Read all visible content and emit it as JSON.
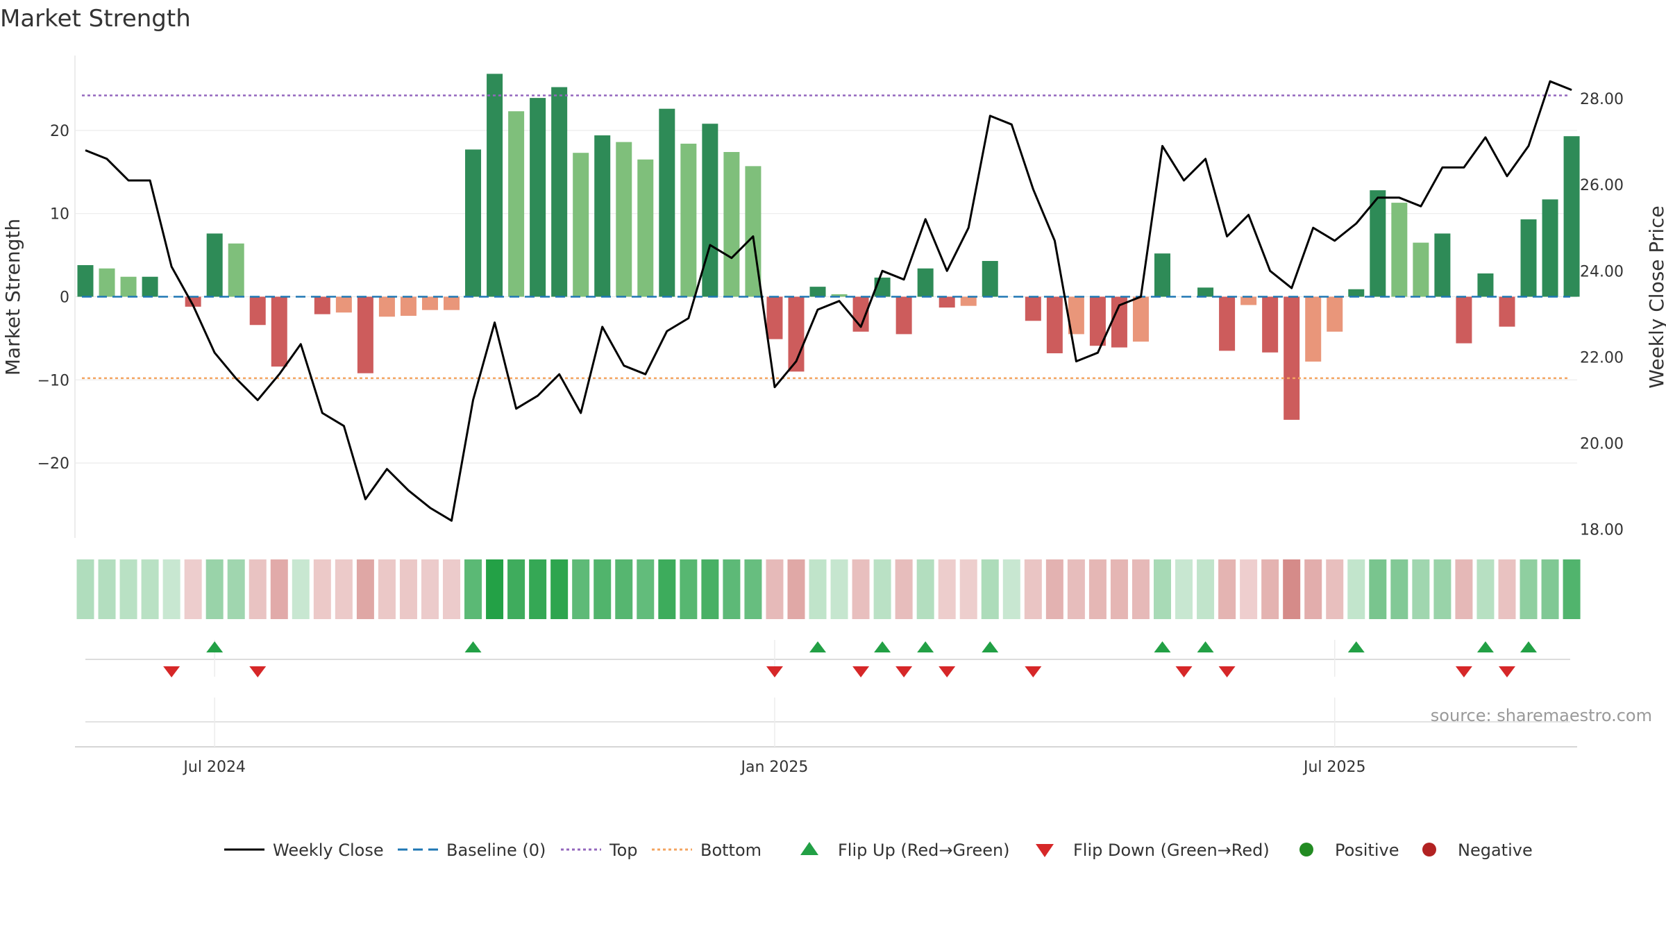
{
  "chart_data": {
    "type": "bar",
    "title": "Market Strength",
    "ylabel": "Market Strength",
    "y2label": "Weekly Close Price",
    "ylim": [
      -29,
      29
    ],
    "y2lim": [
      17.8,
      29.0
    ],
    "yticks": [
      -20,
      -10,
      0,
      10,
      20
    ],
    "yticklabels": [
      "−20",
      "−10",
      "0",
      "10",
      "20"
    ],
    "y2ticks": [
      18,
      20,
      22,
      24,
      26,
      28
    ],
    "y2ticklabels": [
      "18.00",
      "20.00",
      "22.00",
      "24.00",
      "26.00",
      "28.00"
    ],
    "xticks": [
      {
        "index": 6,
        "label": "Jul 2024"
      },
      {
        "index": 32,
        "label": "Jan 2025"
      },
      {
        "index": 58,
        "label": "Jul 2025"
      }
    ],
    "top_level": 24.2,
    "bottom_level": -9.8,
    "baseline": 0,
    "strength": [
      3.8,
      3.4,
      2.4,
      2.4,
      0,
      -1.2,
      7.6,
      6.4,
      -3.4,
      -8.4,
      0,
      -2.1,
      -1.9,
      -9.2,
      -2.4,
      -2.3,
      -1.6,
      -1.6,
      17.7,
      26.8,
      22.3,
      23.9,
      25.2,
      17.3,
      19.4,
      18.6,
      16.5,
      22.6,
      18.4,
      20.8,
      17.4,
      15.7,
      -5.1,
      -9.0,
      1.2,
      0.3,
      -4.2,
      2.3,
      -4.5,
      3.4,
      -1.3,
      -1.1,
      4.3,
      0,
      -2.9,
      -6.8,
      -4.5,
      -5.9,
      -6.1,
      -5.4,
      5.2,
      0,
      1.1,
      -6.5,
      -1.0,
      -6.7,
      -14.8,
      -7.8,
      -4.2,
      0.9,
      12.8,
      11.3,
      6.5,
      7.6,
      -5.6,
      2.8,
      -3.6,
      9.3,
      11.7,
      19.3
    ],
    "strength_shade": [
      "dark",
      "light",
      "light",
      "dark",
      "dark",
      "dark",
      "dark",
      "light",
      "dark",
      "dark",
      "dark",
      "dark",
      "light",
      "dark",
      "light",
      "light",
      "light",
      "light",
      "dark",
      "dark",
      "light",
      "dark",
      "dark",
      "light",
      "dark",
      "light",
      "light",
      "dark",
      "light",
      "dark",
      "light",
      "light",
      "dark",
      "dark",
      "dark",
      "light",
      "dark",
      "dark",
      "dark",
      "dark",
      "dark",
      "light",
      "dark",
      "dark",
      "dark",
      "dark",
      "light",
      "dark",
      "dark",
      "light",
      "dark",
      "dark",
      "dark",
      "dark",
      "light",
      "dark",
      "dark",
      "light",
      "light",
      "dark",
      "dark",
      "light",
      "light",
      "dark",
      "dark",
      "dark",
      "dark",
      "dark",
      "dark",
      "dark"
    ],
    "series": [
      {
        "name": "Weekly Close",
        "values": [
          26.8,
          26.6,
          26.1,
          26.1,
          24.1,
          23.2,
          22.1,
          21.5,
          21.0,
          21.6,
          22.3,
          20.7,
          20.4,
          18.7,
          19.4,
          18.9,
          18.5,
          18.2,
          21.0,
          22.8,
          20.8,
          21.1,
          21.6,
          20.7,
          22.7,
          21.8,
          21.6,
          22.6,
          22.9,
          24.6,
          24.3,
          24.8,
          21.3,
          21.9,
          23.1,
          23.3,
          22.7,
          24.0,
          23.8,
          25.2,
          24.0,
          25.0,
          27.6,
          27.4,
          25.9,
          24.7,
          21.9,
          22.1,
          23.2,
          23.4,
          26.9,
          26.1,
          26.6,
          24.8,
          25.3,
          24.0,
          23.6,
          25.0,
          24.7,
          25.1,
          25.7,
          25.7,
          25.5,
          26.4,
          26.4,
          27.1,
          26.2,
          26.9,
          28.4,
          28.2
        ]
      },
      {
        "name": "Baseline (0)"
      },
      {
        "name": "Top"
      },
      {
        "name": "Bottom"
      },
      {
        "name": "Flip Up (Red→Green)"
      },
      {
        "name": "Flip Down (Green→Red)"
      },
      {
        "name": "Positive"
      },
      {
        "name": "Negative"
      }
    ],
    "flip_up": [
      6,
      18,
      34,
      37,
      39,
      42,
      50,
      52,
      59,
      65,
      67
    ],
    "flip_down": [
      4,
      8,
      32,
      36,
      38,
      40,
      44,
      51,
      53,
      64,
      66
    ],
    "colors": {
      "pos_dark": "#2e8b57",
      "pos_light": "#7fbf7b",
      "neg_dark": "#cd5c5c",
      "neg_light": "#e9967a",
      "close_line": "#000000",
      "baseline": "#1f77b4",
      "top": "#9467bd",
      "bottom": "#f4a460",
      "flip_up": "#22a045",
      "flip_down": "#d62728",
      "positive_dot": "#228b22",
      "negative_dot": "#b22222"
    },
    "source": "source: sharemaestro.com",
    "legend_position": "bottom"
  }
}
